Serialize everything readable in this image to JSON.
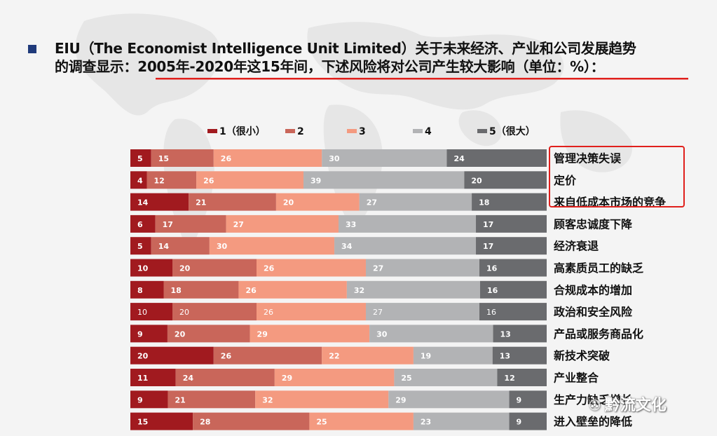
{
  "header": {
    "line1": "EIU（The Economist Intelligence Unit Limited）关于未来经济、产业和公司发展趋势",
    "line2_prefix": "的调查显示：",
    "line2_highlight": "2005年-2020年这15年间，下述风险将对公司产生较大影响（单位：%）："
  },
  "watermark": {
    "text": "黔流文化",
    "icon": "wechat-icon"
  },
  "colors": {
    "s1": "#a11a1f",
    "s2": "#c9665a",
    "s3": "#f49a80",
    "s4": "#b2b3b5",
    "s5": "#6a6b6e",
    "underline": "#e0201c",
    "box": "#e0201c",
    "map": "#e4e4e4"
  },
  "chart_data": {
    "type": "bar",
    "orientation": "horizontal",
    "stacked": true,
    "legend_position": "top",
    "series": [
      {
        "name": "1（很小）",
        "values": [
          5,
          4,
          14,
          6,
          5,
          10,
          8,
          10,
          9,
          20,
          11,
          9,
          15
        ]
      },
      {
        "name": "2",
        "values": [
          15,
          12,
          21,
          17,
          14,
          20,
          18,
          20,
          20,
          26,
          24,
          21,
          28
        ]
      },
      {
        "name": "3",
        "values": [
          26,
          26,
          20,
          27,
          30,
          26,
          26,
          26,
          29,
          22,
          29,
          32,
          25
        ]
      },
      {
        "name": "4",
        "values": [
          30,
          39,
          27,
          33,
          34,
          27,
          32,
          27,
          30,
          19,
          25,
          29,
          23
        ]
      },
      {
        "name": "5（很大）",
        "values": [
          24,
          20,
          18,
          17,
          17,
          16,
          16,
          16,
          13,
          13,
          12,
          9,
          9
        ]
      }
    ],
    "categories": [
      "管理决策失误",
      "定价",
      "来自低成本市场的竞争",
      "顾客忠诚度下降",
      "经济衰退",
      "高素质员工的缺乏",
      "合规成本的增加",
      "政治和安全风险",
      "产品或服务商品化",
      "新技术突破",
      "产业整合",
      "生产力缺乏增长",
      "进入壁垒的降低"
    ],
    "highlighted_categories": [
      "管理决策失误",
      "定价",
      "来自低成本市场的竞争"
    ]
  }
}
